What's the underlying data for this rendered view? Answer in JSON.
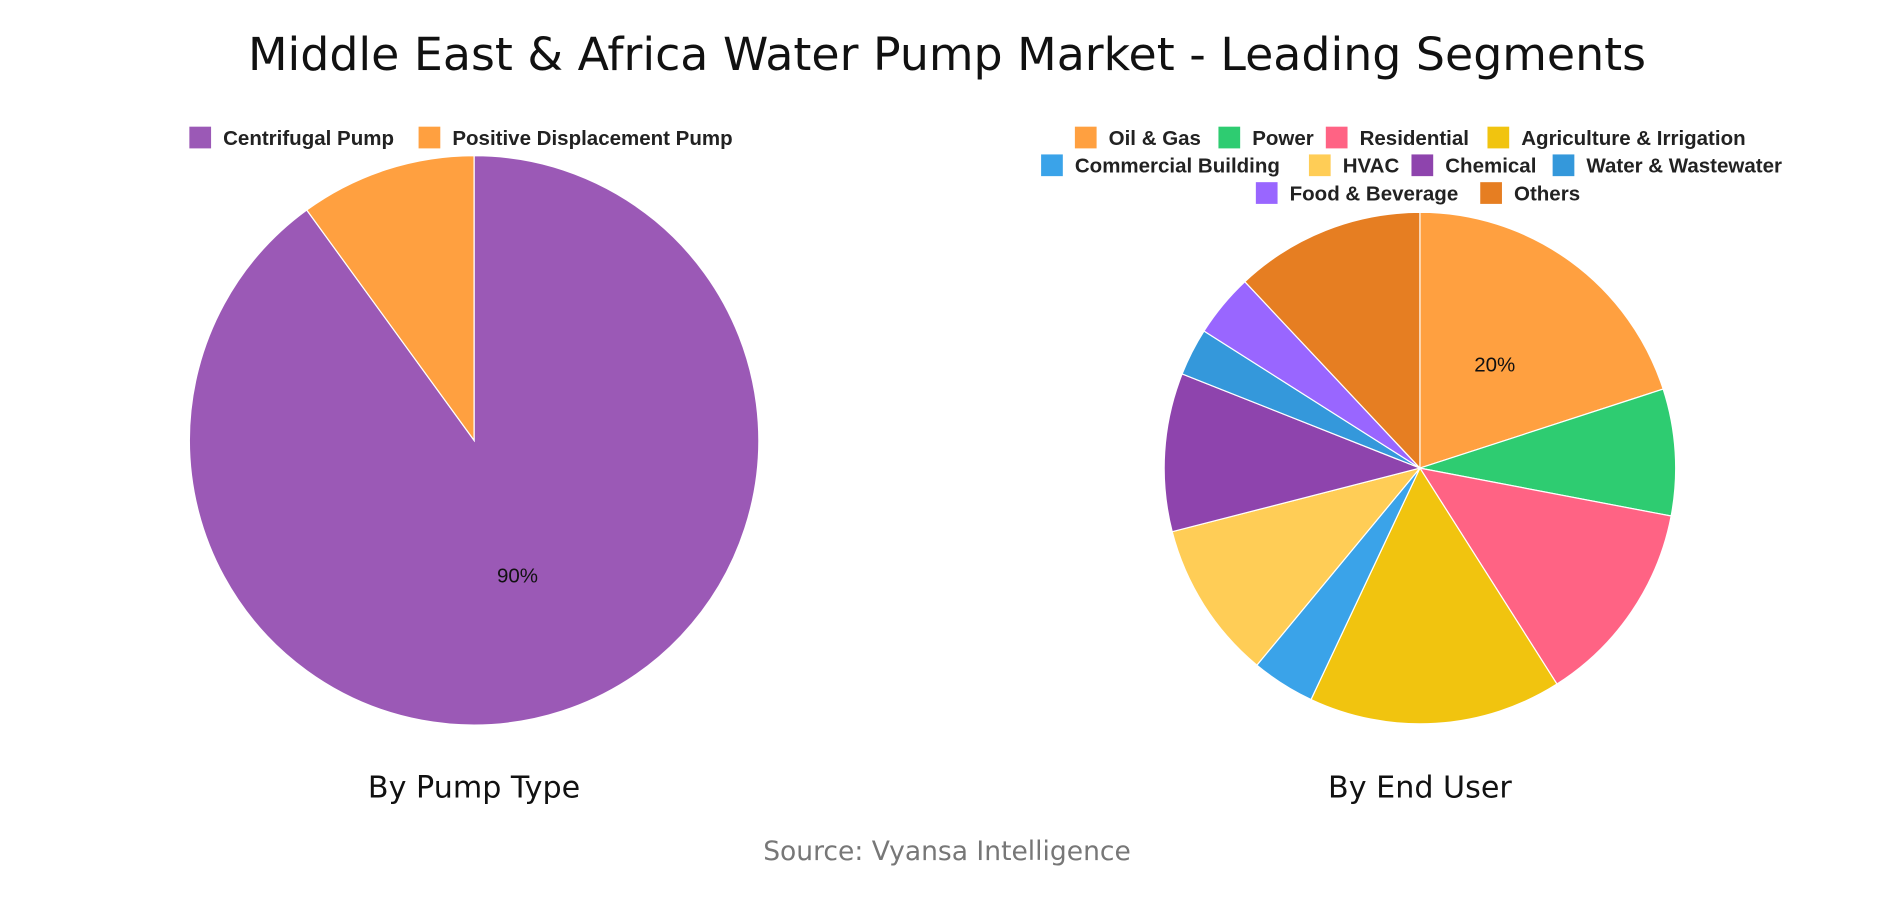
{
  "title": "Middle East & Africa Water Pump Market - Leading Segments",
  "source": "Source: Vyansa Intelligence",
  "chart_data": [
    {
      "type": "pie",
      "title": "By Pump Type",
      "legend_position": "top",
      "categories": [
        "Centrifugal Pump",
        "Positive Displacement Pump"
      ],
      "values": [
        90,
        10
      ],
      "colors": [
        "#9b59b6",
        "#ffa040"
      ],
      "data_labels": [
        "90%",
        ""
      ]
    },
    {
      "type": "pie",
      "title": "By End User",
      "legend_position": "top",
      "categories": [
        "Oil & Gas",
        "Power",
        "Residential",
        "Agriculture & Irrigation",
        "Commercial Building",
        "HVAC",
        "Chemical",
        "Water & Wastewater",
        "Food & Beverage",
        "Others"
      ],
      "values": [
        20,
        8,
        13,
        16,
        4,
        10,
        10,
        3,
        4,
        12
      ],
      "colors": [
        "#ffa040",
        "#2ecc71",
        "#ff6384",
        "#f1c40f",
        "#3aa3e9",
        "#ffcd56",
        "#8e44ad",
        "#3498db",
        "#9966ff",
        "#e67e22"
      ],
      "data_labels": [
        "20%",
        "",
        "",
        "",
        "",
        "",
        "",
        "",
        "",
        ""
      ]
    }
  ]
}
